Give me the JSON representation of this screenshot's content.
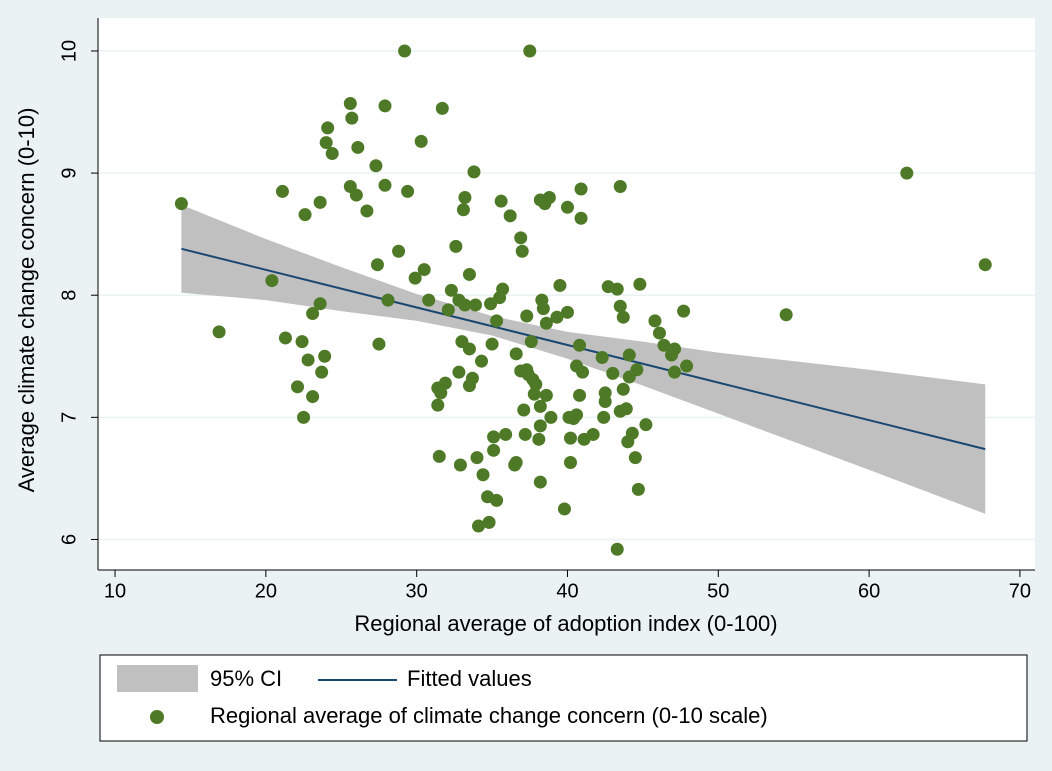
{
  "chart_data": {
    "type": "scatter",
    "x_label": "Regional average of adoption index (0-100)",
    "y_label": "Average climate change concern (0-10)",
    "xlim": [
      8.87,
      71
    ],
    "ylim": [
      5.75,
      10.27
    ],
    "xticks": [
      10,
      20,
      30,
      40,
      50,
      60,
      70
    ],
    "yticks": [
      6,
      7,
      8,
      9,
      10
    ],
    "grid": true,
    "legend": "bottom",
    "series": [
      {
        "name": "95% CI",
        "type": "band",
        "color": "#c0c0c0",
        "x": [
          14.4,
          20,
          25,
          30,
          35,
          40,
          45,
          50,
          55,
          60,
          67.7
        ],
        "lower": [
          8.02,
          7.96,
          7.87,
          7.79,
          7.67,
          7.48,
          7.26,
          7.03,
          6.8,
          6.57,
          6.21
        ],
        "upper": [
          8.74,
          8.46,
          8.23,
          8.01,
          7.83,
          7.7,
          7.62,
          7.53,
          7.46,
          7.39,
          7.27
        ]
      },
      {
        "name": "Fitted values",
        "type": "line",
        "color": "#1a476f",
        "x": [
          14.4,
          67.7
        ],
        "values": [
          8.38,
          6.74
        ]
      },
      {
        "name": "Regional average of climate change concern (0-10 scale)",
        "type": "scatter",
        "color": "#4e7a27",
        "x": [
          14.4,
          16.9,
          20.4,
          21.1,
          21.3,
          22.1,
          22.4,
          22.6,
          22.8,
          22.5,
          23.1,
          23.1,
          23.6,
          23.6,
          23.7,
          23.9,
          24.0,
          24.1,
          24.4,
          25.6,
          25.7,
          25.6,
          26.0,
          26.1,
          26.7,
          27.3,
          27.4,
          27.5,
          27.9,
          27.9,
          28.1,
          28.8,
          29.2,
          29.4,
          29.9,
          30.3,
          30.5,
          30.8,
          31.4,
          31.4,
          31.5,
          31.6,
          31.7,
          31.9,
          32.1,
          32.3,
          32.6,
          32.8,
          32.8,
          33.0,
          32.9,
          33.1,
          33.2,
          33.2,
          33.5,
          33.5,
          33.5,
          33.7,
          33.8,
          33.9,
          34.0,
          34.1,
          34.3,
          34.4,
          34.7,
          34.8,
          34.9,
          35.0,
          35.1,
          35.1,
          35.3,
          35.3,
          35.5,
          35.6,
          35.7,
          35.9,
          36.2,
          36.6,
          36.5,
          36.6,
          36.9,
          36.9,
          37.0,
          37.1,
          37.2,
          37.3,
          37.3,
          37.4,
          37.5,
          37.6,
          37.7,
          37.8,
          37.9,
          38.1,
          38.2,
          38.2,
          38.2,
          38.3,
          38.4,
          38.2,
          38.5,
          38.6,
          38.6,
          38.8,
          38.9,
          39.3,
          39.5,
          39.8,
          40.0,
          40.0,
          40.1,
          40.2,
          40.2,
          40.4,
          40.6,
          40.6,
          40.8,
          40.8,
          40.9,
          40.9,
          41.0,
          41.1,
          41.7,
          42.3,
          42.4,
          42.5,
          42.5,
          42.7,
          43.0,
          43.3,
          43.3,
          43.5,
          43.5,
          43.5,
          43.7,
          43.7,
          43.9,
          44.0,
          44.1,
          44.1,
          44.3,
          44.5,
          44.6,
          44.7,
          44.8,
          45.2,
          45.8,
          46.1,
          46.4,
          46.9,
          47.1,
          47.1,
          47.7,
          47.9,
          54.5,
          62.5,
          67.7
        ],
        "values": [
          8.75,
          7.7,
          8.12,
          8.85,
          7.65,
          7.25,
          7.62,
          8.66,
          7.47,
          7.0,
          7.17,
          7.85,
          8.76,
          7.93,
          7.37,
          7.5,
          9.25,
          9.37,
          9.16,
          9.57,
          9.45,
          8.89,
          8.82,
          9.21,
          8.69,
          9.06,
          8.25,
          7.6,
          9.55,
          8.9,
          7.96,
          8.36,
          10.0,
          8.85,
          8.14,
          9.26,
          8.21,
          7.96,
          7.24,
          7.1,
          6.68,
          7.2,
          9.53,
          7.28,
          7.88,
          8.04,
          8.4,
          7.96,
          7.37,
          7.62,
          6.61,
          8.7,
          8.8,
          7.92,
          7.56,
          7.26,
          8.17,
          7.32,
          9.01,
          7.92,
          6.67,
          6.11,
          7.46,
          6.53,
          6.35,
          6.14,
          7.93,
          7.6,
          6.84,
          6.73,
          7.79,
          6.32,
          7.98,
          8.77,
          8.05,
          6.86,
          8.65,
          7.52,
          6.61,
          6.63,
          8.47,
          7.38,
          8.36,
          7.06,
          6.86,
          7.83,
          7.39,
          7.35,
          10.0,
          7.62,
          7.31,
          7.19,
          7.27,
          6.82,
          8.78,
          7.09,
          6.93,
          7.96,
          7.89,
          6.47,
          8.75,
          7.18,
          7.77,
          8.8,
          7.0,
          7.82,
          8.08,
          6.25,
          8.72,
          7.86,
          7.0,
          6.83,
          6.63,
          6.99,
          7.42,
          7.02,
          7.59,
          7.18,
          8.63,
          8.87,
          7.37,
          6.82,
          6.86,
          7.49,
          7.0,
          7.2,
          7.13,
          8.07,
          7.36,
          8.05,
          5.92,
          8.89,
          7.91,
          7.05,
          7.82,
          7.23,
          7.07,
          6.8,
          7.51,
          7.33,
          6.87,
          6.67,
          7.39,
          6.41,
          8.09,
          6.94,
          7.79,
          7.69,
          7.59,
          7.51,
          7.56,
          7.37,
          7.87,
          7.42,
          7.84,
          9.0,
          8.25
        ]
      }
    ]
  }
}
